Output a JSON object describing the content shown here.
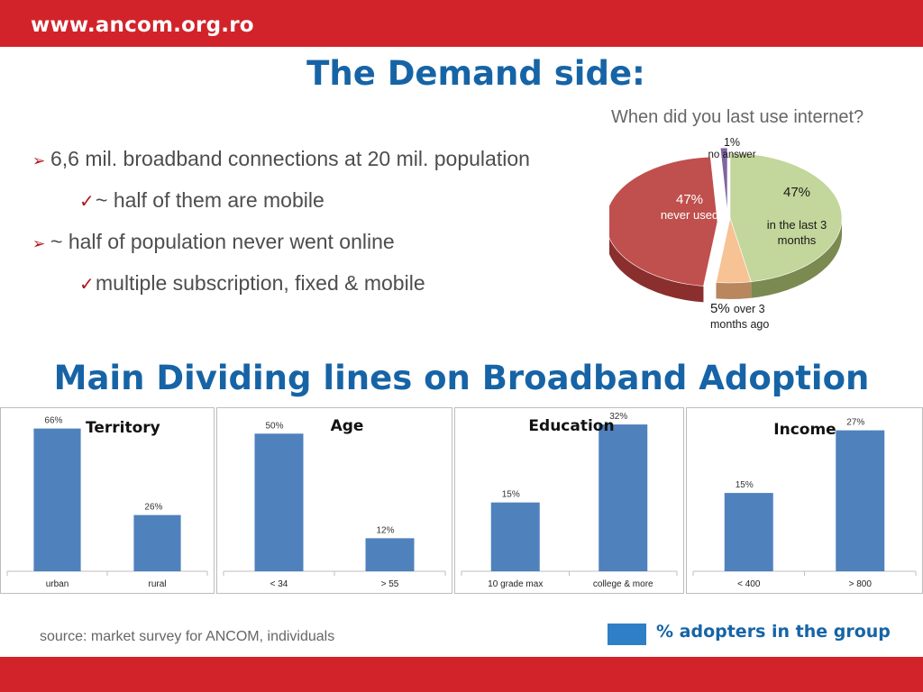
{
  "header": {
    "site": "www.ancom.org.ro"
  },
  "title": "The Demand side:",
  "bullets": [
    {
      "level": 1,
      "marker": "➢",
      "text": "6,6 mil. broadband connections at 20 mil. population"
    },
    {
      "level": 2,
      "marker": "✓",
      "text": "~ half of them are mobile"
    },
    {
      "level": 1,
      "marker": "➢",
      "text": "~ half of population never went online"
    },
    {
      "level": 2,
      "marker": "✓",
      "text": "multiple subscription, fixed & mobile"
    }
  ],
  "subtitle": "Main Dividing lines on Broadband Adoption",
  "legend": {
    "label": "% adopters in the group",
    "color": "#2f7fc6"
  },
  "source": "source: market survey for ANCOM, individuals",
  "chart_data": [
    {
      "type": "pie",
      "title": "When did you last use internet?",
      "slices": [
        {
          "pct": "47%",
          "label": "in the last 3 months",
          "value": 47,
          "color": "#c3d69b",
          "side": "#7a8a50"
        },
        {
          "pct": "5%",
          "label": "over 3 months ago",
          "value": 5,
          "color": "#f7c294",
          "side": "#b8875d"
        },
        {
          "pct": "47%",
          "label": "never used",
          "value": 47,
          "color": "#c0504d",
          "side": "#8a2f2d"
        },
        {
          "pct": "1%",
          "label": "no answer",
          "value": 1,
          "color": "#8064a2",
          "side": "#50407a"
        }
      ]
    },
    {
      "type": "bar",
      "title": "Territory",
      "categories": [
        "urban",
        "rural"
      ],
      "values": [
        66,
        26
      ],
      "value_labels": [
        "66%",
        "26%"
      ],
      "ylim": [
        0,
        70
      ]
    },
    {
      "type": "bar",
      "title": "Age",
      "categories": [
        "< 34",
        "> 55"
      ],
      "values": [
        50,
        12
      ],
      "value_labels": [
        "50%",
        "12%"
      ],
      "ylim": [
        0,
        55
      ]
    },
    {
      "type": "bar",
      "title": "Education",
      "categories": [
        "10 grade max",
        "college & more"
      ],
      "values": [
        15,
        32
      ],
      "value_labels": [
        "15%",
        "32%"
      ],
      "ylim": [
        0,
        33
      ]
    },
    {
      "type": "bar",
      "title": "Income",
      "categories": [
        "< 400",
        "> 800"
      ],
      "values": [
        15,
        27
      ],
      "value_labels": [
        "15%",
        "27%"
      ],
      "ylim": [
        0,
        29
      ]
    }
  ]
}
